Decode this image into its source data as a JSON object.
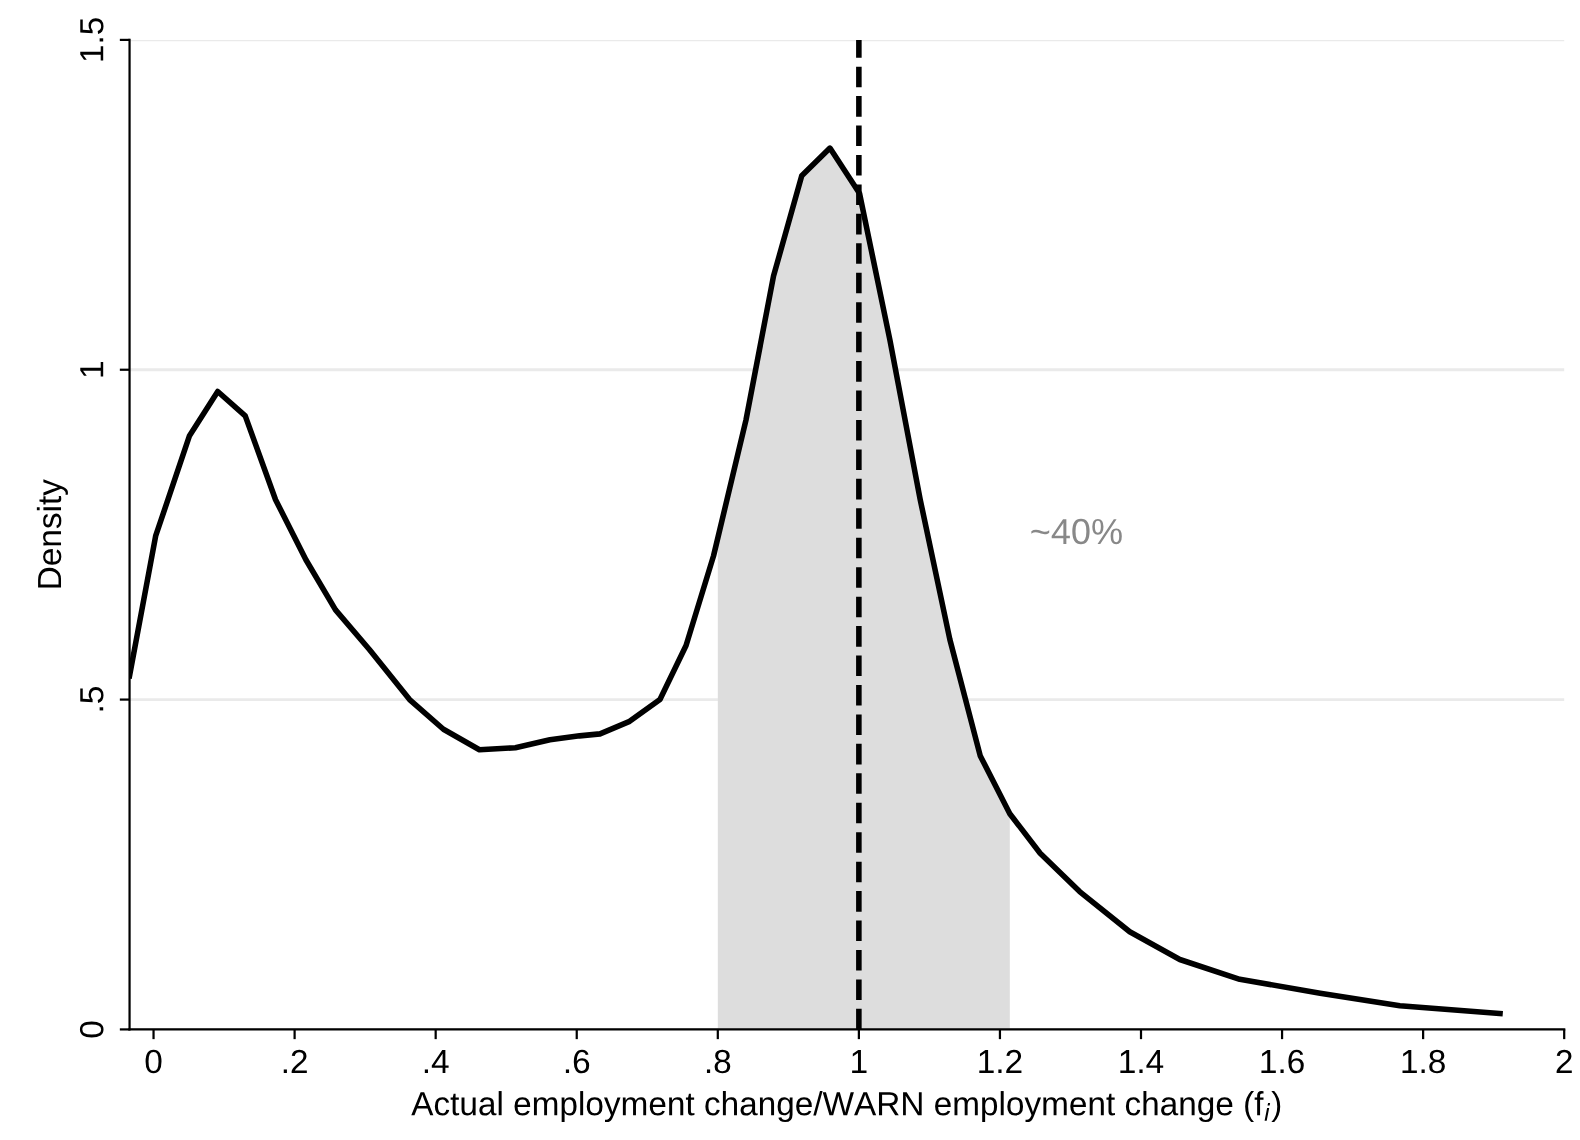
{
  "chart_data": {
    "type": "line",
    "xlabel": "Actual employment change/WARN employment change (f$_{i}$)",
    "ylabel": "Density",
    "x": [
      -0.034,
      0.003,
      0.051,
      0.091,
      0.13,
      0.173,
      0.216,
      0.258,
      0.306,
      0.363,
      0.411,
      0.462,
      0.513,
      0.562,
      0.604,
      0.633,
      0.675,
      0.718,
      0.755,
      0.794,
      0.84,
      0.879,
      0.919,
      0.959,
      1.001,
      1.044,
      1.087,
      1.129,
      1.172,
      1.214,
      1.257,
      1.313,
      1.384,
      1.455,
      1.54,
      1.654,
      1.767,
      1.909
    ],
    "series": [
      {
        "type": "area",
        "color": "#dddddd",
        "x": [
          0.8,
          0.84,
          0.879,
          0.919,
          0.959,
          1.001,
          1.044,
          1.087,
          1.129,
          1.172,
          1.214
        ],
        "values": [
          0.745,
          0.924,
          1.142,
          1.294,
          1.336,
          1.267,
          1.045,
          0.803,
          0.591,
          0.415,
          0.327
        ]
      },
      {
        "color": "#000000",
        "values": [
          0.536,
          0.748,
          0.9,
          0.967,
          0.93,
          0.803,
          0.712,
          0.636,
          0.576,
          0.5,
          0.455,
          0.424,
          0.427,
          0.439,
          0.445,
          0.448,
          0.467,
          0.5,
          0.582,
          0.718,
          0.924,
          1.142,
          1.294,
          1.336,
          1.267,
          1.045,
          0.803,
          0.591,
          0.415,
          0.327,
          0.267,
          0.209,
          0.148,
          0.106,
          0.076,
          0.055,
          0.036,
          0.024
        ]
      }
    ],
    "xlim": [
      -0.034,
      2
    ],
    "ylim": [
      0,
      1.5
    ],
    "xticks": [
      0,
      {
        "value": 0.2,
        "label": ".2"
      },
      {
        "value": 0.4,
        "label": ".4"
      },
      {
        "value": 0.6,
        "label": ".6"
      },
      {
        "value": 0.8,
        "label": ".8"
      },
      1,
      {
        "value": 1.2,
        "label": "1.2"
      },
      {
        "value": 1.4,
        "label": "1.4"
      },
      {
        "value": 1.6,
        "label": "1.6"
      },
      {
        "value": 1.8,
        "label": "1.8"
      },
      2
    ],
    "yticks": [
      0,
      {
        "value": 0.5,
        "label": ".5"
      },
      1,
      {
        "value": 1.5,
        "label": "1.5"
      }
    ],
    "grid": "y",
    "legend": false,
    "line_style": "solid",
    "marker": "none",
    "ref_lines": [
      {
        "axis": "x",
        "value": 1,
        "color": "#000000",
        "line_style": "dashed"
      }
    ],
    "annotations": [
      "~40%"
    ]
  }
}
